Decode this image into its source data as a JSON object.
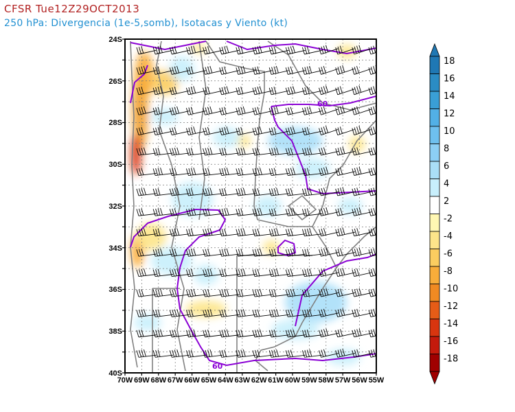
{
  "header": {
    "title": "CFSR Tue12Z29OCT2013",
    "subtitle": "250 hPa: Divergencia (1e-5,somb), Isotacas y Viento (kt)"
  },
  "map": {
    "lat_labels": [
      "24S",
      "26S",
      "28S",
      "30S",
      "32S",
      "34S",
      "36S",
      "38S",
      "40S"
    ],
    "lon_labels": [
      "70W",
      "69W",
      "68W",
      "67W",
      "66W",
      "65W",
      "64W",
      "63W",
      "62W",
      "61W",
      "60W",
      "59W",
      "58W",
      "57W",
      "56W",
      "55W"
    ],
    "lon_range": [
      -70,
      -55
    ],
    "lat_range": [
      -40,
      -24
    ],
    "isotach_labels": [
      "60",
      "60"
    ],
    "isotach_color": "#8a00d4"
  },
  "colorbar": {
    "labels": [
      "18",
      "16",
      "14",
      "12",
      "10",
      "8",
      "6",
      "4",
      "2",
      "-2",
      "-4",
      "-6",
      "-8",
      "-10",
      "-12",
      "-14",
      "-16",
      "-18"
    ],
    "colors": [
      "#1f78b4",
      "#2b8cc4",
      "#3a9fd6",
      "#52b0e6",
      "#6ec0ef",
      "#8ccff5",
      "#aadff8",
      "#c8effc",
      "#ffffff",
      "#fff7b3",
      "#fde58a",
      "#fbcd60",
      "#f8ad3a",
      "#f08a22",
      "#e65c17",
      "#d8350f",
      "#c41a0c",
      "#a00000"
    ]
  }
}
